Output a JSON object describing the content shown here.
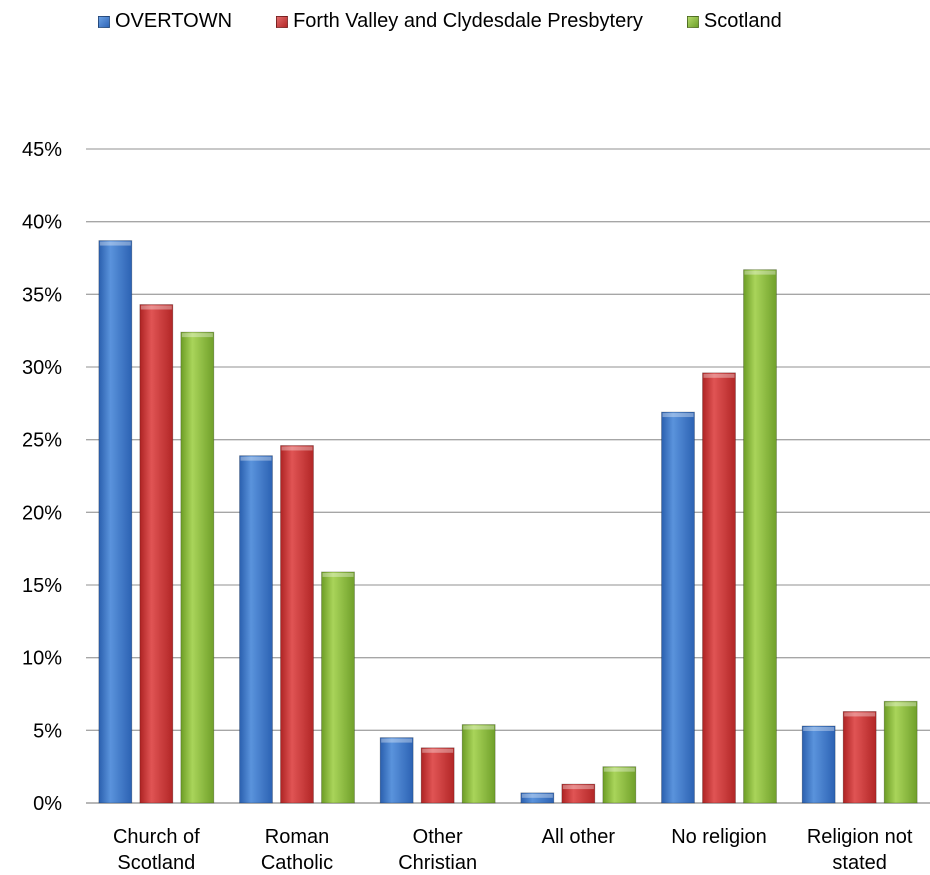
{
  "legend": [
    {
      "name": "OVERTOWN",
      "color": "#3f7fd4"
    },
    {
      "name": "Forth Valley and Clydesdale Presbytery",
      "color": "#d23a3a"
    },
    {
      "name": "Scotland",
      "color": "#8fc43c"
    }
  ],
  "chart_data": {
    "type": "bar",
    "categories": [
      [
        "Church of",
        "Scotland"
      ],
      [
        "Roman",
        "Catholic"
      ],
      [
        "Other",
        "Christian"
      ],
      [
        "All other"
      ],
      [
        "No religion"
      ],
      [
        "Religion not",
        "stated"
      ]
    ],
    "series": [
      {
        "name": "OVERTOWN",
        "color": "#3f7fd4",
        "values": [
          38.7,
          23.9,
          4.5,
          0.7,
          26.9,
          5.3
        ]
      },
      {
        "name": "Forth Valley and Clydesdale Presbytery",
        "color": "#d23a3a",
        "values": [
          34.3,
          24.6,
          3.8,
          1.3,
          29.6,
          6.3
        ]
      },
      {
        "name": "Scotland",
        "color": "#8fc43c",
        "values": [
          32.4,
          15.9,
          5.4,
          2.5,
          36.7,
          7.0
        ]
      }
    ],
    "ylim": [
      0,
      45
    ],
    "yticks": [
      "0%",
      "5%",
      "10%",
      "15%",
      "20%",
      "25%",
      "30%",
      "35%",
      "40%",
      "45%"
    ],
    "grid": true,
    "legend_position": "top"
  }
}
